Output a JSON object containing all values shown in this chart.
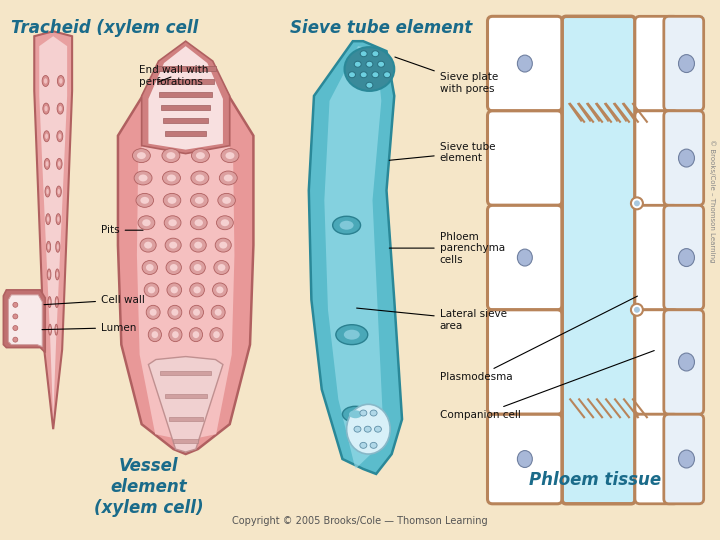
{
  "background_color": "#f5e6c8",
  "title_tracheid": "Tracheid (xylem cell",
  "title_sieve": "Sieve tube element",
  "title_vessel": "Vessel\nelement\n(xylem cell)",
  "title_phloem": "Phloem tissue",
  "copyright": "Copyright © 2005 Brooks/Cole — Thomson Learning",
  "header_color": "#1a6b8a",
  "tracheid_fill": "#e8a0a0",
  "tracheid_edge": "#b06060",
  "tracheid_light": "#f5d0d0",
  "vessel_fill": "#e89898",
  "vessel_edge": "#b06060",
  "vessel_inner": "#f5c0c0",
  "vessel_dark": "#c87070",
  "sieve_fill": "#5bbccc",
  "sieve_edge": "#2a8898",
  "sieve_dark": "#3a9aaa",
  "sieve_light": "#a0e0ec",
  "phloem_wall": "#b8845a",
  "phloem_cell_light": "#e8f4f8",
  "phloem_sieve_tube": "#c8eef8",
  "phloem_nuclei": "#a8b8d8",
  "label_font_size": 7.5,
  "title_font_size": 12
}
